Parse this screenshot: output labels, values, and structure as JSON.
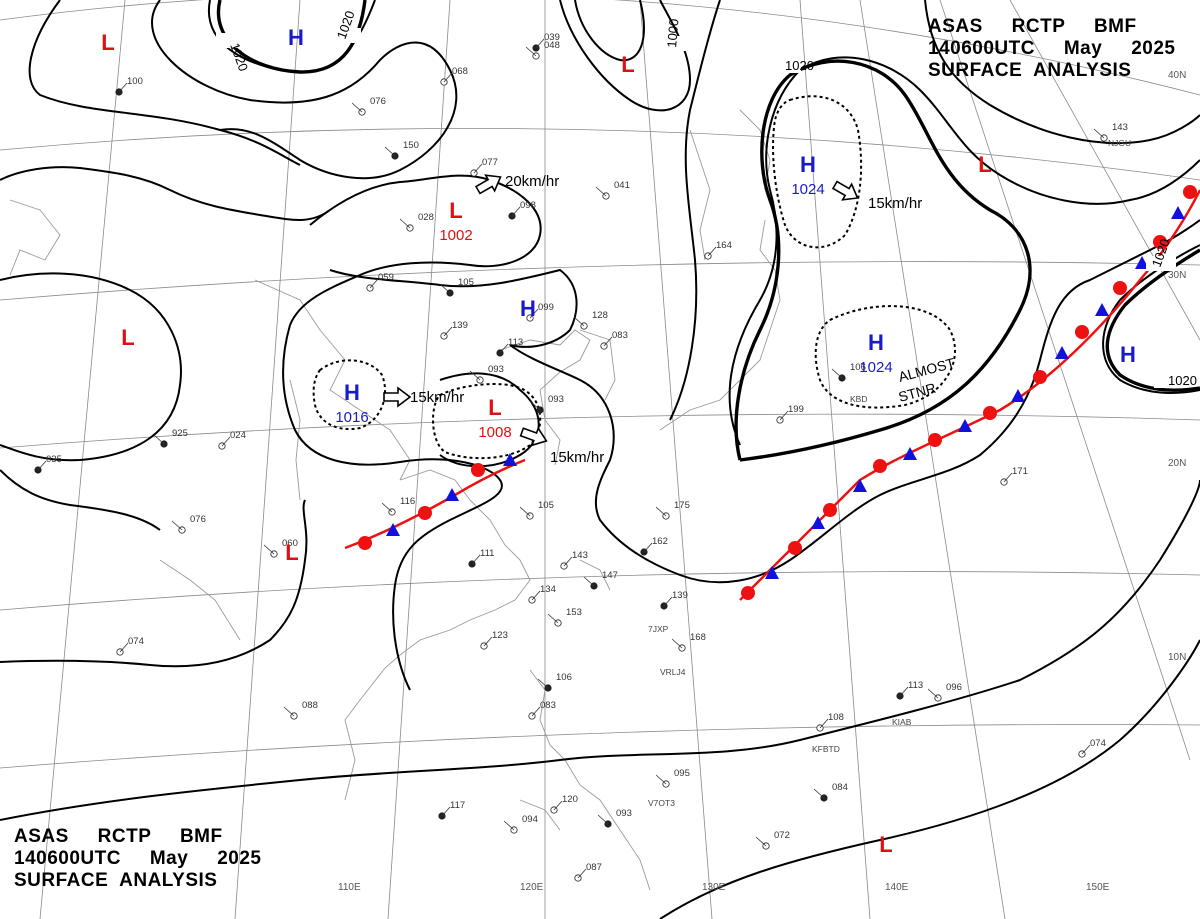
{
  "header": {
    "line1": "ASAS     RCTP     BMF",
    "line2": "140600UTC     May     2025",
    "line3": "SURFACE  ANALYSIS"
  },
  "colors": {
    "high": "#1a1acc",
    "low": "#dd1111",
    "isobar": "#000000",
    "grid": "#8a8a8a",
    "coast": "#9a9a9a",
    "warm_front": "#ee1111",
    "cold_front": "#1111dd"
  },
  "lon_labels": [
    "110E",
    "120E",
    "130E",
    "140E",
    "150E"
  ],
  "lat_labels": [
    "40N",
    "30N",
    "20N",
    "10N"
  ],
  "pressure_systems": [
    {
      "type": "H",
      "value": ""
    },
    {
      "type": "L",
      "value": ""
    },
    {
      "type": "L",
      "value": ""
    },
    {
      "type": "H",
      "value": "1024"
    },
    {
      "type": "L",
      "value": ""
    },
    {
      "type": "L",
      "value": "1002"
    },
    {
      "type": "L",
      "value": ""
    },
    {
      "type": "H",
      "value": ""
    },
    {
      "type": "H",
      "value": "1016"
    },
    {
      "type": "L",
      "value": "1008"
    },
    {
      "type": "H",
      "value": "1024"
    },
    {
      "type": "H",
      "value": ""
    },
    {
      "type": "L",
      "value": ""
    },
    {
      "type": "L",
      "value": ""
    }
  ],
  "isobar_labels": [
    "1020",
    "1020",
    "1000",
    "1020",
    "1020",
    "1020"
  ],
  "motion_labels": [
    "20km/hr",
    "15km/hr",
    "15km/hr",
    "15km/hr"
  ],
  "annotations": {
    "almost": "ALMOST",
    "stnr": "STNR"
  },
  "station_ids": [
    "VRLJ4",
    "7JXP",
    "KFBTD",
    "KIAB",
    "V7OT3",
    "KBD",
    "NJGU"
  ],
  "station_values": [
    "100",
    "076",
    "068",
    "150",
    "077",
    "028",
    "098",
    "041",
    "059",
    "105",
    "139",
    "093",
    "113",
    "128",
    "083",
    "093",
    "099",
    "116",
    "111",
    "105",
    "143",
    "147",
    "134",
    "153",
    "139",
    "168",
    "123",
    "106",
    "083",
    "088",
    "117",
    "094",
    "120",
    "093",
    "087",
    "095",
    "113",
    "096",
    "108",
    "084",
    "074",
    "072",
    "035",
    "076",
    "074",
    "925",
    "024",
    "060",
    "162",
    "175",
    "199",
    "106",
    "171",
    "143",
    "039",
    "048",
    "164"
  ]
}
